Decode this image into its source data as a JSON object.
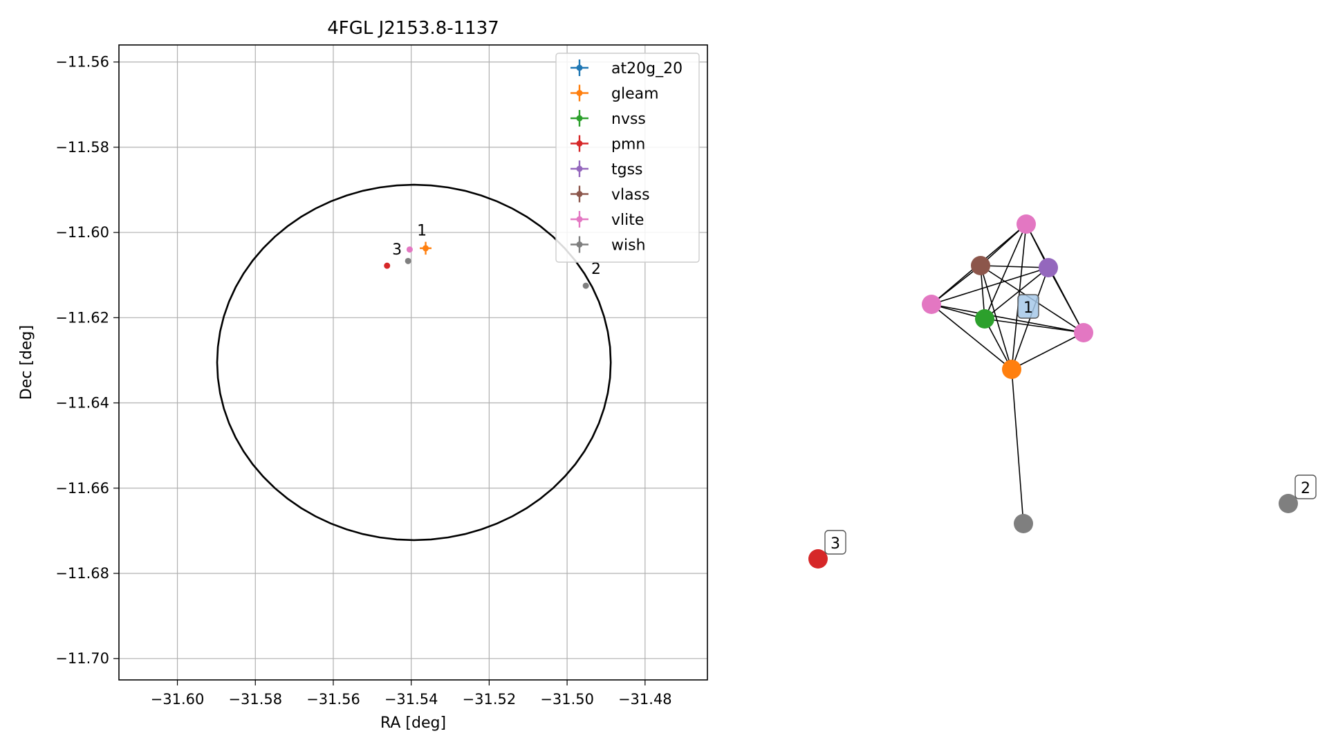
{
  "colors": {
    "at20g_20": "#1f77b4",
    "gleam": "#ff7f0e",
    "nvss": "#2ca02c",
    "pmn": "#d62728",
    "tgss": "#9467bd",
    "vlass": "#8c564b",
    "vlite": "#e377c2",
    "wish": "#7f7f7f",
    "grid": "#b0b0b0",
    "graph_label_bg": "#a6c8e8"
  },
  "chart_data": [
    {
      "type": "scatter",
      "title": "4FGL J2153.8-1137",
      "xlabel": "RA [deg]",
      "ylabel": "Dec [deg]",
      "xlim": [
        -31.615,
        -31.464
      ],
      "ylim": [
        -11.705,
        -11.556
      ],
      "xticks": [
        -31.6,
        -31.58,
        -31.56,
        -31.54,
        -31.52,
        -31.5,
        -31.48
      ],
      "xtick_labels": [
        "−31.60",
        "−31.58",
        "−31.56",
        "−31.54",
        "−31.52",
        "−31.50",
        "−31.48"
      ],
      "yticks": [
        -11.56,
        -11.58,
        -11.6,
        -11.62,
        -11.64,
        -11.66,
        -11.68,
        -11.7
      ],
      "ytick_labels": [
        "−11.56",
        "−11.58",
        "−11.60",
        "−11.62",
        "−11.64",
        "−11.66",
        "−11.68",
        "−11.70"
      ],
      "grid": true,
      "legend_position": "top-right",
      "legend": [
        "at20g_20",
        "gleam",
        "nvss",
        "pmn",
        "tgss",
        "vlass",
        "vlite",
        "wish"
      ],
      "ellipse": {
        "center": [
          -31.5393,
          -11.6305
        ],
        "semi_ra": 0.0505,
        "semi_dec": 0.0417
      },
      "points": [
        {
          "series": "gleam",
          "x": -31.5363,
          "y": -11.6037,
          "xerr": 0.0015,
          "yerr": 0.0015
        },
        {
          "series": "vlite",
          "x": -31.5404,
          "y": -11.604,
          "xerr": 0.0006,
          "yerr": 0.0006
        },
        {
          "series": "wish",
          "x": -31.5408,
          "y": -11.6067,
          "xerr": 0.0004,
          "yerr": 0.0004
        },
        {
          "series": "pmn",
          "x": -31.5462,
          "y": -11.6078,
          "xerr": 0.0002,
          "yerr": 0.0002
        },
        {
          "series": "wish",
          "x": -31.4952,
          "y": -11.6125,
          "xerr": 0.0002,
          "yerr": 0.0002
        }
      ],
      "annotations": [
        {
          "text": "1",
          "x": -31.5385,
          "y": -11.6007
        },
        {
          "text": "3",
          "x": -31.5449,
          "y": -11.6052
        },
        {
          "text": "2",
          "x": -31.4938,
          "y": -11.6097
        }
      ]
    },
    {
      "type": "network",
      "nodes": [
        {
          "id": "vlite_top",
          "series": "vlite"
        },
        {
          "id": "vlass",
          "series": "vlass"
        },
        {
          "id": "tgss",
          "series": "tgss"
        },
        {
          "id": "vlite_left",
          "series": "vlite"
        },
        {
          "id": "vlite_right",
          "series": "vlite"
        },
        {
          "id": "nvss",
          "series": "nvss"
        },
        {
          "id": "gleam",
          "series": "gleam"
        },
        {
          "id": "wish_mid",
          "series": "wish"
        },
        {
          "id": "pmn",
          "series": "pmn"
        },
        {
          "id": "wish_far",
          "series": "wish"
        }
      ],
      "edges": [
        [
          "vlite_top",
          "vlass"
        ],
        [
          "vlite_top",
          "tgss"
        ],
        [
          "vlite_top",
          "vlite_left"
        ],
        [
          "vlite_top",
          "vlite_right"
        ],
        [
          "vlite_top",
          "nvss"
        ],
        [
          "vlite_top",
          "gleam"
        ],
        [
          "vlass",
          "tgss"
        ],
        [
          "vlass",
          "vlite_left"
        ],
        [
          "vlass",
          "vlite_right"
        ],
        [
          "vlass",
          "nvss"
        ],
        [
          "vlass",
          "gleam"
        ],
        [
          "tgss",
          "vlite_left"
        ],
        [
          "tgss",
          "vlite_right"
        ],
        [
          "tgss",
          "nvss"
        ],
        [
          "tgss",
          "gleam"
        ],
        [
          "vlite_left",
          "vlite_right"
        ],
        [
          "vlite_left",
          "nvss"
        ],
        [
          "vlite_left",
          "gleam"
        ],
        [
          "vlite_right",
          "nvss"
        ],
        [
          "vlite_right",
          "gleam"
        ],
        [
          "nvss",
          "gleam"
        ],
        [
          "gleam",
          "wish_mid"
        ]
      ],
      "labels": [
        {
          "text": "1",
          "highlight": true
        },
        {
          "text": "2",
          "highlight": false
        },
        {
          "text": "3",
          "highlight": false
        }
      ]
    }
  ]
}
